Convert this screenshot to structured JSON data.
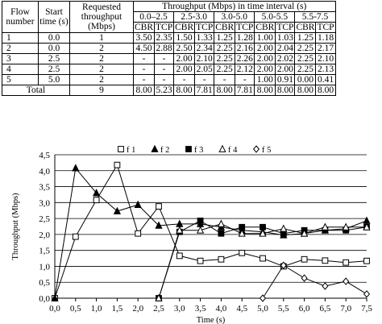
{
  "table": {
    "headers": {
      "flow_number": "Flow number",
      "start_time": "Start time (s)",
      "requested": "Requested throughput (Mbps)",
      "throughput_group": "Throughput (Mbps) in time interval (s)",
      "intervals": [
        "0.0–2.5",
        "2.5-3.0",
        "3.0-5.0",
        "5.0-5.5",
        "5.5-7.5"
      ],
      "sub": [
        "CBR",
        "TCP"
      ]
    },
    "rows": [
      {
        "flow": "1",
        "start": "0.0",
        "req": "1",
        "vals": [
          "3.50",
          "2.35",
          "1.50",
          "1.33",
          "1.25",
          "1.28",
          "1.00",
          "1.03",
          "1.25",
          "1.18"
        ]
      },
      {
        "flow": "2",
        "start": "0.0",
        "req": "2",
        "vals": [
          "4.50",
          "2.88",
          "2.50",
          "2.34",
          "2.25",
          "2.16",
          "2.00",
          "2.04",
          "2.25",
          "2.17"
        ]
      },
      {
        "flow": "3",
        "start": "2.5",
        "req": "2",
        "vals": [
          "-",
          "-",
          "2.00",
          "2.10",
          "2.25",
          "2.26",
          "2.00",
          "2.02",
          "2.25",
          "2.10"
        ]
      },
      {
        "flow": "4",
        "start": "2.5",
        "req": "2",
        "vals": [
          "-",
          "-",
          "2.00",
          "2.05",
          "2.25",
          "2.12",
          "2.00",
          "2.00",
          "2.25",
          "2.13"
        ]
      },
      {
        "flow": "5",
        "start": "5.0",
        "req": "2",
        "vals": [
          "-",
          "-",
          "-",
          "-",
          "-",
          "-",
          "1.00",
          "0.91",
          "0.00",
          "0.41"
        ]
      }
    ],
    "total": {
      "label": "Total",
      "req": "9",
      "vals": [
        "8.00",
        "5.23",
        "8.00",
        "7.81",
        "8.00",
        "7.81",
        "8.00",
        "8.00",
        "8.00",
        "8.00"
      ]
    }
  },
  "chart_data": {
    "type": "line",
    "xlabel": "Time (s)",
    "ylabel": "Throughput (Mbps)",
    "xlim": [
      0,
      7.5
    ],
    "ylim": [
      0,
      4.5
    ],
    "xticks": [
      "0,0",
      "0,5",
      "1,0",
      "1,5",
      "2,0",
      "2,5",
      "3,0",
      "3,5",
      "4,0",
      "4,5",
      "5,0",
      "5,5",
      "6,0",
      "6,5",
      "7,0",
      "7,5"
    ],
    "yticks": [
      "0,0",
      "0,5",
      "1,0",
      "1,5",
      "2,0",
      "2,5",
      "3,0",
      "3,5",
      "4,0",
      "4,5"
    ],
    "grid": "horizontal",
    "legend_position": "top",
    "series": [
      {
        "name": "f 1",
        "marker": "square-open",
        "points": [
          [
            0,
            0
          ],
          [
            0.5,
            1.93
          ],
          [
            1,
            3.08
          ],
          [
            1.5,
            4.18
          ],
          [
            2,
            2.03
          ],
          [
            2.5,
            2.88
          ],
          [
            3,
            1.33
          ],
          [
            3.5,
            1.17
          ],
          [
            4,
            1.22
          ],
          [
            4.5,
            1.42
          ],
          [
            5,
            1.25
          ],
          [
            5.5,
            1.0
          ],
          [
            6,
            1.22
          ],
          [
            6.5,
            1.18
          ],
          [
            7,
            1.12
          ],
          [
            7.5,
            1.17
          ]
        ]
      },
      {
        "name": "f 2",
        "marker": "triangle-filled",
        "points": [
          [
            0,
            0
          ],
          [
            0.5,
            4.08
          ],
          [
            1,
            3.3
          ],
          [
            1.5,
            2.73
          ],
          [
            2,
            2.93
          ],
          [
            2.5,
            2.28
          ],
          [
            3,
            2.33
          ],
          [
            3.5,
            2.33
          ],
          [
            4,
            2.23
          ],
          [
            4.5,
            2.13
          ],
          [
            5,
            2.08
          ],
          [
            5.5,
            1.98
          ],
          [
            6,
            2.03
          ],
          [
            6.5,
            2.13
          ],
          [
            7,
            2.18
          ],
          [
            7.5,
            2.43
          ]
        ]
      },
      {
        "name": "f 3",
        "marker": "square-filled",
        "points": [
          [
            2.5,
            0
          ],
          [
            3,
            2.08
          ],
          [
            3.5,
            2.43
          ],
          [
            4,
            2.03
          ],
          [
            4.5,
            2.23
          ],
          [
            5,
            2.23
          ],
          [
            5.5,
            2.03
          ],
          [
            6,
            2.13
          ],
          [
            6.5,
            2.13
          ],
          [
            7,
            2.13
          ],
          [
            7.5,
            2.23
          ]
        ]
      },
      {
        "name": "f 4",
        "marker": "triangle-open",
        "points": [
          [
            2.5,
            0
          ],
          [
            3,
            2.13
          ],
          [
            3.5,
            2.13
          ],
          [
            4,
            2.33
          ],
          [
            4.5,
            2.03
          ],
          [
            5,
            2.03
          ],
          [
            5.5,
            2.18
          ],
          [
            6,
            2.03
          ],
          [
            6.5,
            2.23
          ],
          [
            7,
            2.23
          ],
          [
            7.5,
            2.23
          ]
        ]
      },
      {
        "name": "f 5",
        "marker": "diamond-open",
        "points": [
          [
            5,
            0
          ],
          [
            5.5,
            1.03
          ],
          [
            6,
            0.63
          ],
          [
            6.5,
            0.38
          ],
          [
            7,
            0.53
          ],
          [
            7.5,
            0.13
          ]
        ]
      }
    ]
  }
}
